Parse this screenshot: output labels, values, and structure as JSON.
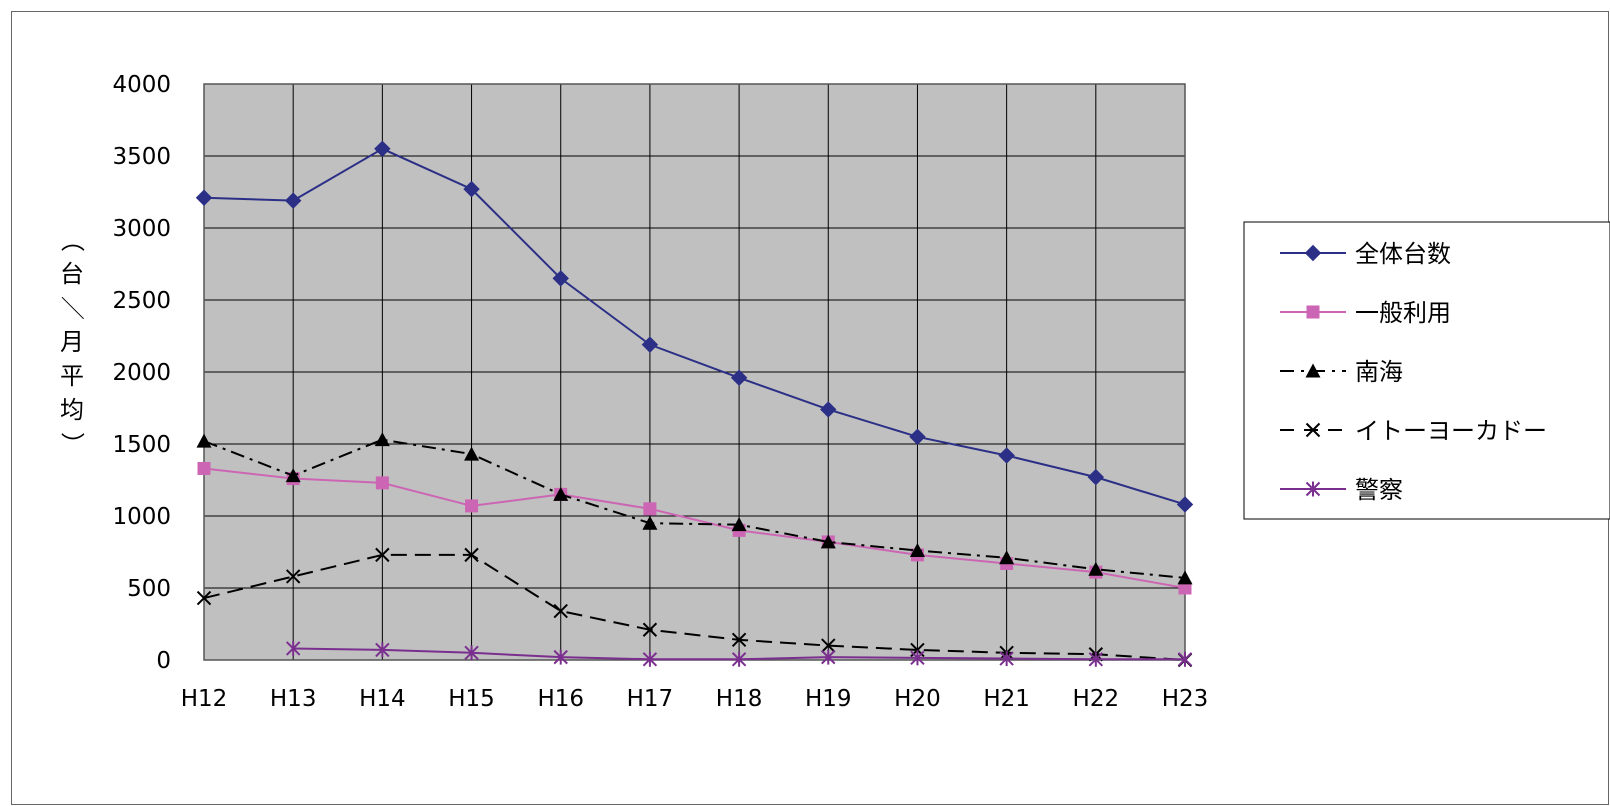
{
  "chart_data": {
    "type": "line",
    "categories": [
      "H12",
      "H13",
      "H14",
      "H15",
      "H16",
      "H17",
      "H18",
      "H19",
      "H20",
      "H21",
      "H22",
      "H23"
    ],
    "ylabel": "（台／月平均）",
    "ylim": [
      0,
      4000
    ],
    "yticks": [
      0,
      500,
      1000,
      1500,
      2000,
      2500,
      3000,
      3500,
      4000
    ],
    "grid": true,
    "plot_background": "#c0c0c0",
    "legend_position": "right",
    "series": [
      {
        "name": "全体台数",
        "color": "#2b2f86",
        "marker": "diamond",
        "dash": "solid",
        "values": [
          3210,
          3190,
          3550,
          3270,
          2650,
          2190,
          1960,
          1740,
          1550,
          1420,
          1270,
          1080
        ]
      },
      {
        "name": "一般利用",
        "color": "#cc66b4",
        "marker": "square",
        "dash": "solid",
        "values": [
          1330,
          1260,
          1230,
          1070,
          1150,
          1050,
          900,
          820,
          730,
          670,
          610,
          500
        ]
      },
      {
        "name": "南海",
        "color": "#000000",
        "marker": "triangle",
        "dash": "dashdot",
        "values": [
          1520,
          1280,
          1530,
          1430,
          1150,
          950,
          940,
          820,
          760,
          710,
          630,
          570
        ]
      },
      {
        "name": "イトーヨーカドー",
        "color": "#000000",
        "marker": "x",
        "dash": "dash",
        "values": [
          430,
          580,
          730,
          730,
          340,
          210,
          140,
          100,
          70,
          50,
          40,
          0
        ]
      },
      {
        "name": "警察",
        "color": "#7a2f8f",
        "marker": "star",
        "dash": "solid",
        "values": [
          null,
          80,
          70,
          50,
          20,
          5,
          5,
          20,
          15,
          10,
          5,
          5
        ]
      }
    ]
  }
}
